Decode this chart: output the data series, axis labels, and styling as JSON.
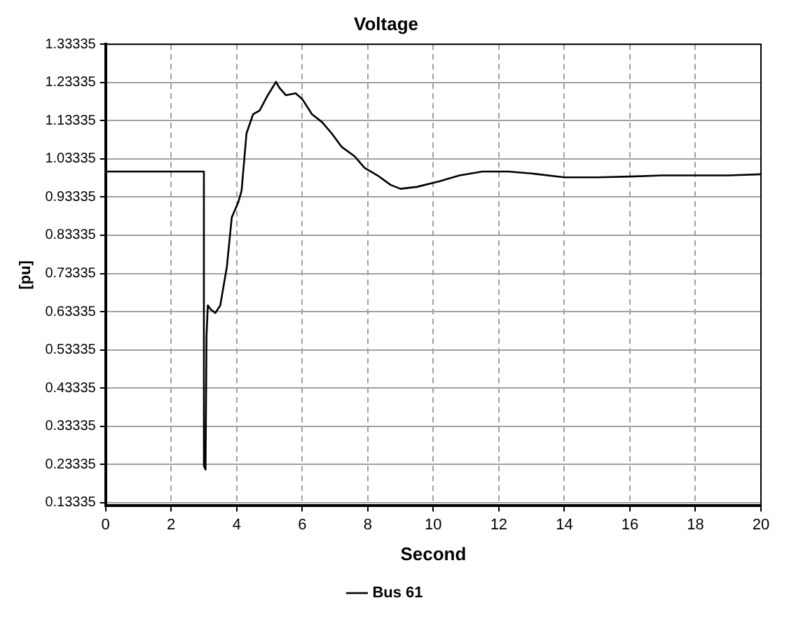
{
  "chart_data": {
    "type": "line",
    "title": "Voltage",
    "xlabel": "Second",
    "ylabel": "[pu]",
    "x": [
      0,
      3,
      3,
      3.05,
      3.08,
      3.12,
      3.2,
      3.35,
      3.5,
      3.7,
      3.85,
      4.05,
      4.15,
      4.3,
      4.5,
      4.7,
      4.95,
      5.2,
      5.3,
      5.5,
      5.8,
      6.0,
      6.3,
      6.6,
      6.9,
      7.2,
      7.6,
      7.9,
      8.3,
      8.7,
      9.0,
      9.5,
      10.2,
      10.8,
      11.5,
      12.3,
      13.0,
      14.0,
      15.0,
      16.0,
      17.0,
      19.0,
      20.0
    ],
    "series": [
      {
        "name": "Bus 61",
        "color": "#000000",
        "values": [
          1.0,
          1.0,
          0.23,
          0.22,
          0.57,
          0.65,
          0.64,
          0.63,
          0.65,
          0.75,
          0.88,
          0.92,
          0.95,
          1.1,
          1.15,
          1.16,
          1.2,
          1.235,
          1.22,
          1.2,
          1.205,
          1.19,
          1.15,
          1.13,
          1.1,
          1.065,
          1.04,
          1.01,
          0.99,
          0.965,
          0.955,
          0.96,
          0.975,
          0.99,
          1.0,
          1.0,
          0.995,
          0.985,
          0.985,
          0.987,
          0.99,
          0.99,
          0.993
        ]
      }
    ],
    "xlim": [
      0,
      20
    ],
    "xticks": [
      0,
      2,
      4,
      6,
      8,
      10,
      12,
      14,
      16,
      18,
      20
    ],
    "ylim": [
      0.125,
      1.33335
    ],
    "yticks": [
      0.13335,
      0.23335,
      0.33335,
      0.43335,
      0.53335,
      0.63335,
      0.73335,
      0.83335,
      0.93335,
      1.03335,
      1.13335,
      1.23335,
      1.33335
    ],
    "grid": true,
    "legend": "bottom",
    "marker": "none",
    "line_style": "solid"
  }
}
